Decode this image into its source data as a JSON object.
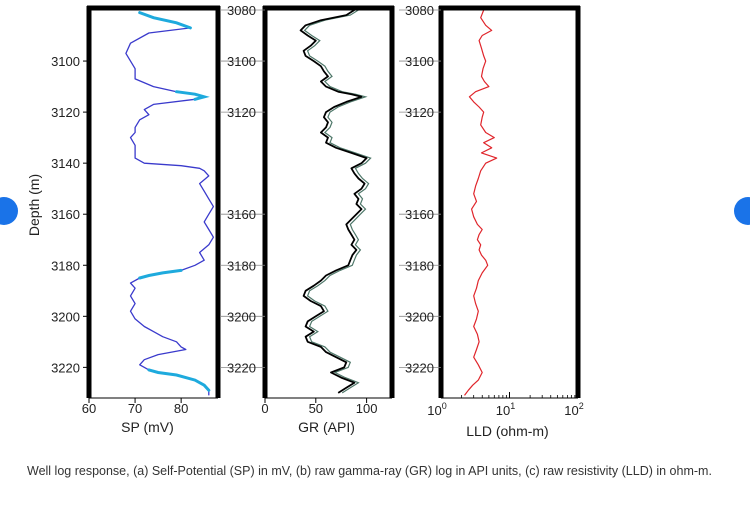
{
  "caption": "Well log response, (a) Self-Potential (SP) in mV, (b) raw gamma-ray (GR) log in API units, (c) raw resistivity (LLD) in ohm-m.",
  "colors": {
    "frame": "#000000",
    "sp_main": "#3a3acc",
    "sp_highlight": "#1eaadd",
    "gr_main": "#000000",
    "gr_shadow": "#2f5f4f",
    "lld": "#e0252b",
    "nav": "#1a73e8"
  },
  "chart_data": [
    {
      "type": "line",
      "id": "sp",
      "xlabel": "SP (mV)",
      "ylabel": "Depth (m)",
      "xlim": [
        60,
        88
      ],
      "ylim": [
        3232,
        3080
      ],
      "x_ticks": [
        "60",
        "70",
        "80"
      ],
      "y_ticks": [
        "3100",
        "3120",
        "3140",
        "3160",
        "3180",
        "3200",
        "3220"
      ],
      "series": [
        {
          "name": "SP",
          "depth": [
            3081,
            3083,
            3085,
            3087,
            3089,
            3093,
            3097,
            3100,
            3103,
            3107,
            3110,
            3112,
            3113,
            3114,
            3115,
            3117,
            3119,
            3121,
            3123,
            3126,
            3128,
            3130,
            3133,
            3135,
            3138,
            3140,
            3141,
            3142,
            3143,
            3145,
            3148,
            3151,
            3154,
            3157,
            3160,
            3163,
            3166,
            3169,
            3172,
            3175,
            3178,
            3180,
            3182,
            3183,
            3184,
            3185,
            3187,
            3189,
            3192,
            3195,
            3198,
            3201,
            3204,
            3206,
            3208,
            3210,
            3212,
            3213,
            3215,
            3217,
            3219,
            3221,
            3222,
            3223,
            3225,
            3227,
            3229,
            3231
          ],
          "values": [
            71,
            74,
            79,
            82,
            73,
            69,
            68,
            69,
            70,
            70,
            74,
            79,
            83,
            85,
            83,
            74,
            72,
            73,
            71,
            70,
            70,
            69,
            70,
            70,
            70,
            72,
            80,
            84,
            85,
            86,
            84,
            85,
            86,
            87,
            86,
            85,
            86,
            87,
            86,
            84,
            85,
            83,
            80,
            76,
            73,
            71,
            69,
            70,
            69,
            70,
            69,
            70,
            72,
            74,
            76,
            79,
            80,
            81,
            75,
            72,
            71,
            73,
            75,
            79,
            83,
            85,
            86,
            86
          ]
        }
      ]
    },
    {
      "type": "line",
      "id": "gr",
      "xlabel": "GR (API)",
      "xlim": [
        0,
        125
      ],
      "ylim": [
        3232,
        3080
      ],
      "x_ticks": [
        "0",
        "50",
        "100"
      ],
      "y_ticks": [
        "3080",
        "3100",
        "3120",
        "3160",
        "3180",
        "3200",
        "3220"
      ],
      "series": [
        {
          "name": "GR",
          "depth": [
            3080,
            3082,
            3084,
            3086,
            3088,
            3090,
            3092,
            3094,
            3096,
            3098,
            3100,
            3102,
            3104,
            3106,
            3108,
            3110,
            3112,
            3113,
            3114,
            3116,
            3118,
            3120,
            3122,
            3124,
            3126,
            3128,
            3130,
            3132,
            3134,
            3136,
            3138,
            3140,
            3142,
            3144,
            3146,
            3148,
            3150,
            3152,
            3154,
            3156,
            3158,
            3160,
            3162,
            3164,
            3166,
            3168,
            3170,
            3172,
            3174,
            3176,
            3178,
            3180,
            3182,
            3184,
            3186,
            3188,
            3190,
            3192,
            3194,
            3196,
            3198,
            3200,
            3202,
            3204,
            3206,
            3208,
            3210,
            3212,
            3214,
            3216,
            3218,
            3220,
            3222,
            3224,
            3226,
            3228,
            3230
          ],
          "values": [
            88,
            80,
            55,
            40,
            35,
            42,
            50,
            45,
            38,
            40,
            48,
            55,
            58,
            62,
            55,
            60,
            72,
            85,
            95,
            80,
            68,
            60,
            58,
            62,
            60,
            55,
            62,
            60,
            70,
            85,
            100,
            95,
            85,
            88,
            92,
            98,
            95,
            88,
            92,
            90,
            95,
            90,
            85,
            80,
            82,
            85,
            88,
            85,
            90,
            86,
            84,
            82,
            70,
            60,
            55,
            48,
            40,
            38,
            45,
            55,
            58,
            50,
            42,
            40,
            48,
            40,
            42,
            55,
            60,
            70,
            80,
            78,
            65,
            75,
            88,
            80,
            72
          ]
        }
      ]
    },
    {
      "type": "line",
      "id": "lld",
      "xlabel": "LLD (ohm-m)",
      "xscale": "log",
      "xlim": [
        1,
        100
      ],
      "ylim": [
        3232,
        3080
      ],
      "x_ticks": [
        "10^0",
        "10^1",
        "10^2"
      ],
      "y_ticks": [
        "3080",
        "3100",
        "3120",
        "3160",
        "3180",
        "3200",
        "3220"
      ],
      "series": [
        {
          "name": "LLD",
          "depth": [
            3080,
            3083,
            3086,
            3088,
            3090,
            3092,
            3095,
            3098,
            3100,
            3103,
            3106,
            3108,
            3110,
            3112,
            3114,
            3116,
            3118,
            3120,
            3122,
            3125,
            3128,
            3130,
            3132,
            3134,
            3136,
            3138,
            3140,
            3143,
            3146,
            3149,
            3152,
            3155,
            3158,
            3161,
            3164,
            3166,
            3168,
            3170,
            3172,
            3174,
            3176,
            3178,
            3180,
            3183,
            3186,
            3189,
            3192,
            3195,
            3198,
            3201,
            3204,
            3207,
            3210,
            3213,
            3216,
            3219,
            3222,
            3225,
            3227,
            3229,
            3231
          ],
          "values": [
            4.2,
            3.8,
            4.5,
            5.5,
            4.0,
            3.6,
            3.9,
            4.2,
            4.5,
            4.1,
            3.9,
            4.3,
            5.0,
            3.2,
            2.6,
            3.0,
            3.6,
            4.2,
            4.0,
            3.8,
            4.5,
            6.0,
            4.2,
            5.5,
            3.9,
            6.5,
            4.5,
            3.8,
            3.5,
            3.2,
            3.0,
            3.3,
            2.8,
            3.0,
            3.4,
            4.0,
            3.6,
            3.4,
            3.8,
            3.6,
            3.9,
            4.5,
            4.8,
            4.0,
            3.5,
            3.3,
            3.0,
            3.2,
            3.5,
            3.3,
            3.0,
            3.4,
            3.6,
            3.3,
            3.0,
            3.5,
            4.0,
            3.5,
            2.9,
            2.5,
            2.2
          ]
        }
      ]
    }
  ]
}
